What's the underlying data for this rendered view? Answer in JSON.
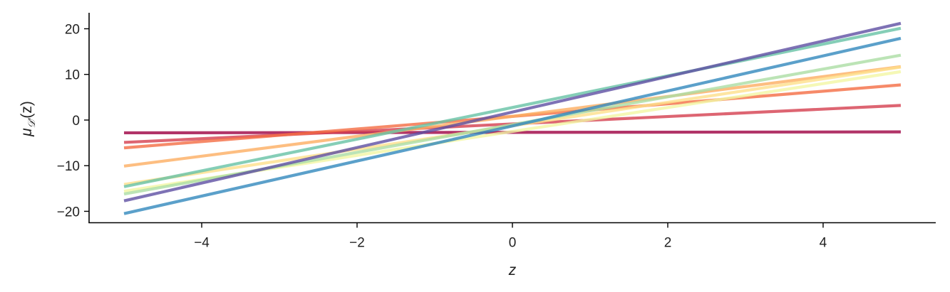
{
  "chart_data": {
    "type": "line",
    "xlabel": "z",
    "ylabel": "μ_D′(z)",
    "ylabel_parts": {
      "mu": "μ",
      "sub": "𝒟′",
      "rest": "(z)"
    },
    "xlim": [
      -5.45,
      5.45
    ],
    "ylim": [
      -22.5,
      23.5
    ],
    "xticks": [
      -4,
      -2,
      0,
      2,
      4
    ],
    "xtick_labels": [
      "−4",
      "−2",
      "0",
      "2",
      "4"
    ],
    "yticks": [
      -20,
      -10,
      0,
      10,
      20
    ],
    "ytick_labels": [
      "−20",
      "−10",
      "0",
      "10",
      "20"
    ],
    "grid": false,
    "legend": "none",
    "x": [
      -5,
      5
    ],
    "series": [
      {
        "color": "#9e0142",
        "values": [
          -2.8,
          -2.6
        ]
      },
      {
        "color": "#d53e4f",
        "values": [
          -4.9,
          3.2
        ]
      },
      {
        "color": "#f46d43",
        "values": [
          -6.1,
          7.7
        ]
      },
      {
        "color": "#fdae61",
        "values": [
          -10.1,
          11.7
        ]
      },
      {
        "color": "#fee08b",
        "values": [
          -14.1,
          11.6
        ]
      },
      {
        "color": "#f2f6a4",
        "values": [
          -15.6,
          10.6
        ]
      },
      {
        "color": "#abdda4",
        "values": [
          -16.2,
          14.2
        ]
      },
      {
        "color": "#66c2a5",
        "values": [
          -14.6,
          20.1
        ]
      },
      {
        "color": "#5e4fa2",
        "values": [
          -17.7,
          21.2
        ]
      },
      {
        "color": "#3288bd",
        "values": [
          -20.5,
          17.9
        ]
      }
    ]
  }
}
